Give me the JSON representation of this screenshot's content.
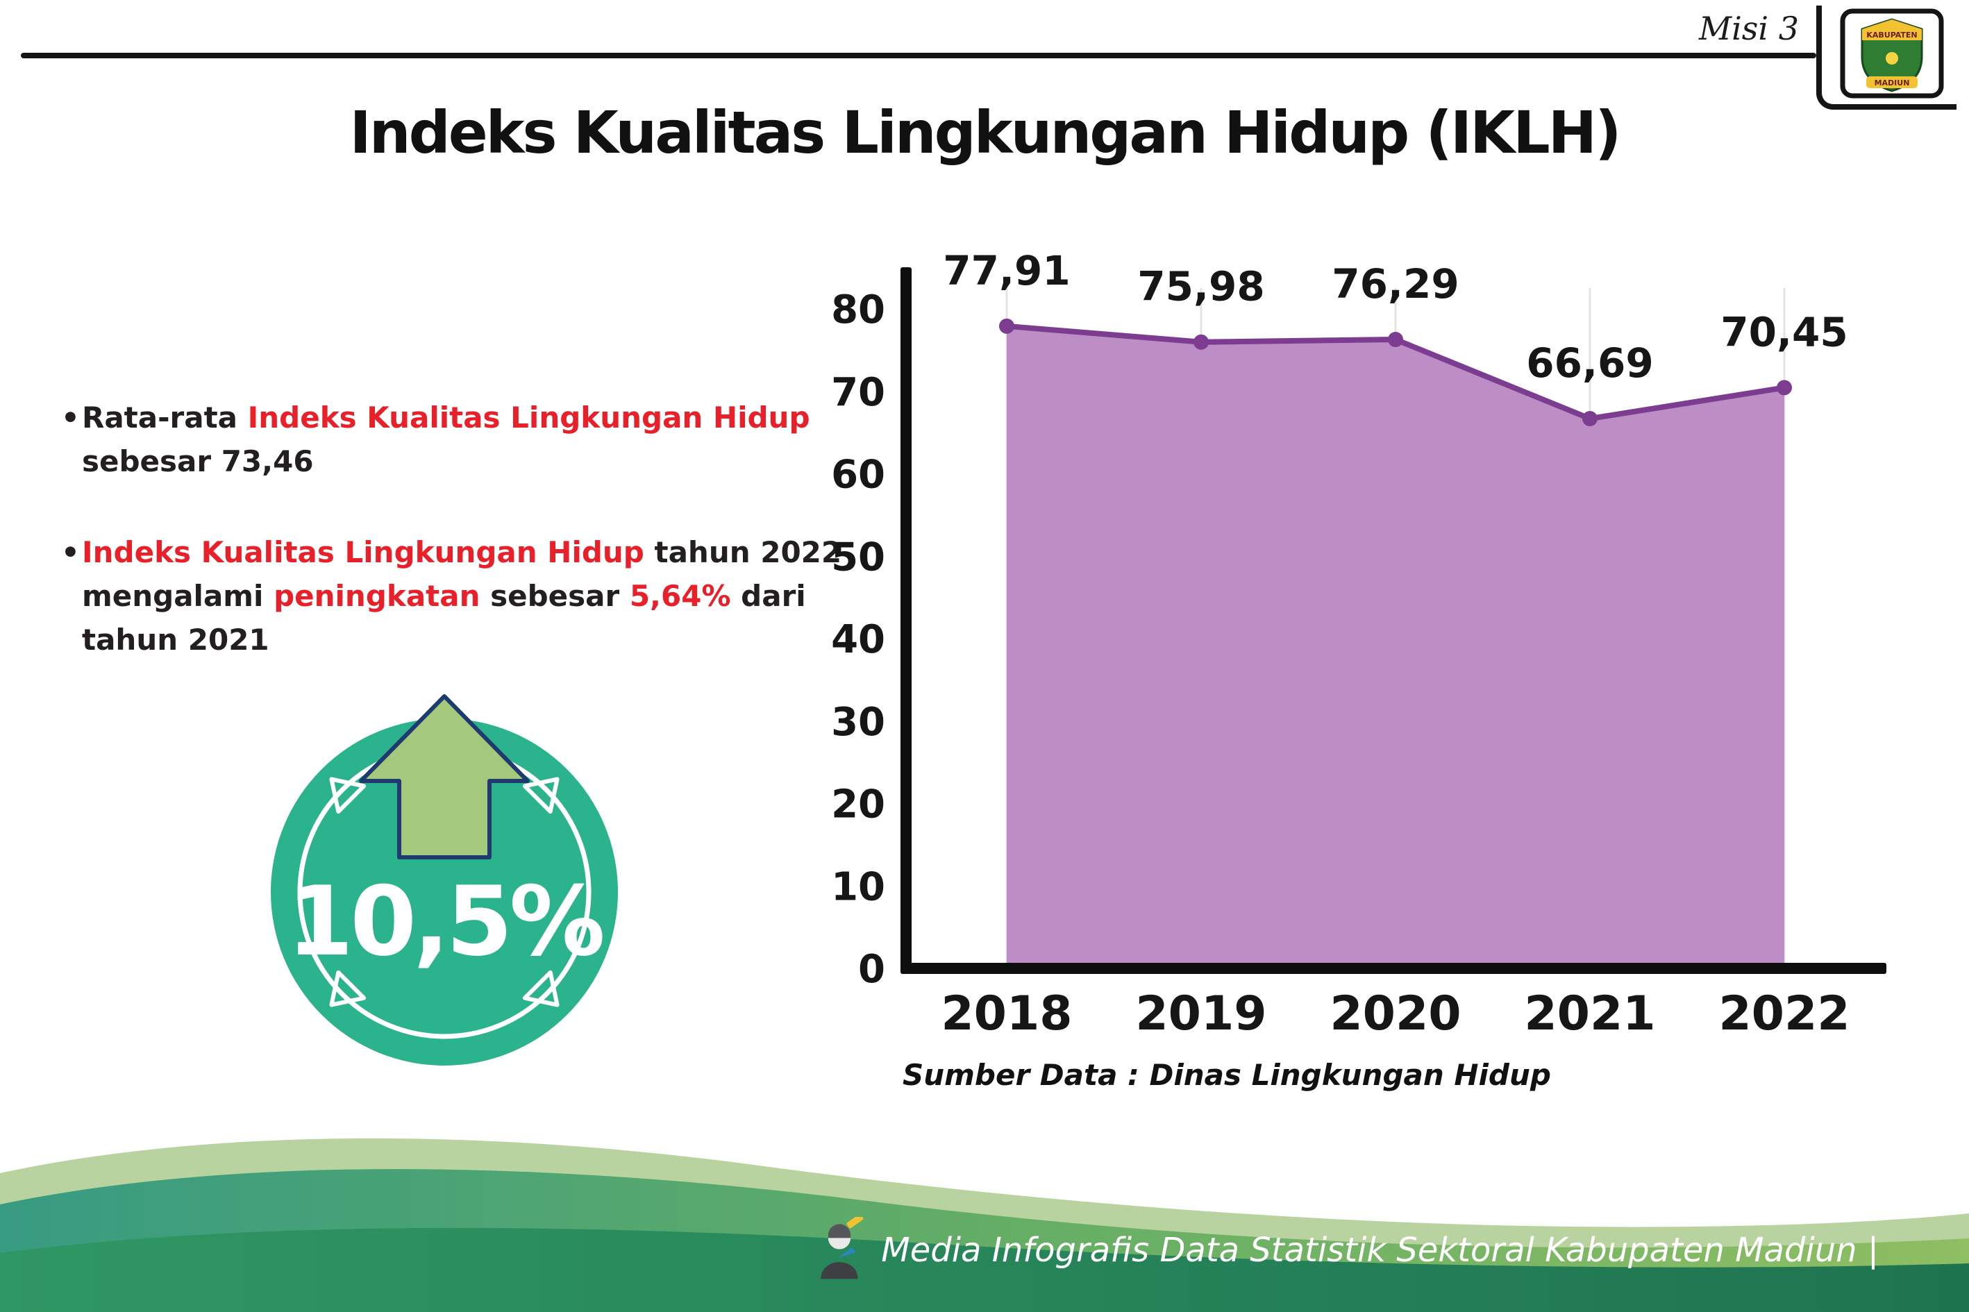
{
  "header": {
    "misi_label": "Misi 3",
    "logo": {
      "line1": "KABUPATEN",
      "line2": "MADIUN"
    }
  },
  "title": "Indeks Kualitas Lingkungan Hidup (IKLH)",
  "colors": {
    "accent_red": "#e8202a",
    "text_black": "#231f20",
    "badge_teal": "#2bb38e",
    "arrow_green": "#a4c87c",
    "arrow_outline": "#1f3a6e",
    "chart_fill_purple": "#bd8dc5",
    "chart_line_purple": "#7c3d90"
  },
  "bullets": [
    {
      "bullet_char": "•",
      "segments": [
        {
          "text": "Rata-rata ",
          "color": "#231f20"
        },
        {
          "text": "Indeks Kualitas Lingkungan Hidup",
          "color": "#e8202a"
        },
        {
          "text": " sebesar 73,46",
          "color": "#231f20"
        }
      ]
    },
    {
      "bullet_char": "•",
      "segments": [
        {
          "text": "Indeks Kualitas Lingkungan Hidup",
          "color": "#e8202a"
        },
        {
          "text": " tahun 2022 mengalami ",
          "color": "#231f20"
        },
        {
          "text": "peningkatan",
          "color": "#e8202a"
        },
        {
          "text": " sebesar ",
          "color": "#231f20"
        },
        {
          "text": "5,64%",
          "color": "#e8202a"
        },
        {
          "text": " dari tahun 2021",
          "color": "#231f20"
        }
      ]
    }
  ],
  "badge": {
    "value": "10,5%",
    "circle_color": "#2bb38e",
    "arrow_color": "#a4c87c",
    "arrow_outline": "#1f3a6e"
  },
  "chart_data": {
    "type": "area",
    "title": "",
    "xlabel": "",
    "ylabel": "",
    "categories": [
      "2018",
      "2019",
      "2020",
      "2021",
      "2022"
    ],
    "values": [
      77.91,
      75.98,
      76.29,
      66.69,
      70.45
    ],
    "value_labels": [
      "77,91",
      "75,98",
      "76,29",
      "66,69",
      "70,45"
    ],
    "ylim": [
      0,
      80
    ],
    "ytick_step": 10,
    "yticks": [
      "0",
      "10",
      "20",
      "30",
      "40",
      "50",
      "60",
      "70",
      "80"
    ],
    "grid": true,
    "legend": false,
    "fill_color": "#bd8dc5",
    "line_color": "#7c3d90",
    "source_note": "Sumber Data : Dinas Lingkungan Hidup"
  },
  "footer": {
    "credit_text": "Media Infografis Data Statistik Sektoral Kabupaten Madiun |"
  }
}
